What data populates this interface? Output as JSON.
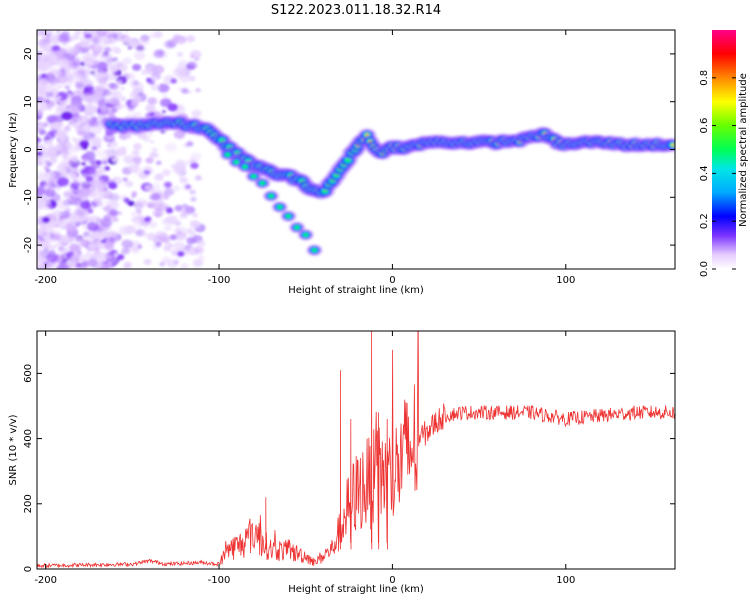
{
  "page_title": "S122.2023.011.18.32.R14",
  "chart_data": [
    {
      "type": "heatmap",
      "xlabel": "Height of straight line (km)",
      "ylabel": "Frequency (Hz)",
      "xlim": [
        -205,
        163
      ],
      "ylim": [
        -25,
        25
      ],
      "x_ticks": [
        -200,
        -100,
        0,
        100
      ],
      "y_ticks": [
        -20,
        -10,
        0,
        10,
        20
      ],
      "colorbar": {
        "label": "Normalized spectral amplitude",
        "range": [
          0,
          1
        ],
        "ticks": [
          0.0,
          0.2,
          0.4,
          0.6,
          0.8
        ],
        "tick_labels": [
          "0.0",
          "0.2",
          "0.4",
          "0.6",
          "0.8"
        ],
        "colormap": [
          "#ffffff",
          "#e6ccff",
          "#a066ff",
          "#5a00e0",
          "#0000ff",
          "#00aaff",
          "#00e6e6",
          "#00ff55",
          "#66ff00",
          "#ffff00",
          "#ff8800",
          "#ff0000",
          "#ff0088"
        ]
      },
      "ridge": {
        "description_x": [
          -162,
          -150,
          -135,
          -125,
          -117,
          -105,
          -98,
          -90,
          -82,
          -75,
          -68,
          -60,
          -52,
          -45,
          -40,
          -35,
          -30,
          -25,
          -20,
          -15,
          -10,
          -5,
          0,
          10,
          20,
          40,
          60,
          75,
          82,
          88,
          95,
          100,
          110,
          120,
          135,
          150,
          163
        ],
        "description_y": [
          5,
          5,
          5.5,
          5.5,
          5,
          4,
          1.5,
          -1,
          -3,
          -4,
          -5,
          -5.5,
          -7,
          -8.5,
          -9,
          -7,
          -4,
          -2,
          1,
          3,
          0,
          -0.5,
          0.5,
          0.5,
          1.5,
          1.5,
          1.5,
          2,
          3,
          3,
          1.5,
          1,
          1.5,
          1.5,
          1,
          1,
          1
        ],
        "branch_x": [
          -95,
          -85,
          -75,
          -68,
          -60,
          -55,
          -50,
          -45,
          -42
        ],
        "branch_y": [
          -1,
          -4,
          -7,
          -11,
          -14,
          -16,
          -18,
          -21,
          -23
        ]
      }
    },
    {
      "type": "line",
      "xlabel": "Height of straight line (km)",
      "ylabel": "SNR (10 * v/v)",
      "xlim": [
        -205,
        163
      ],
      "ylim": [
        0,
        730
      ],
      "x_ticks": [
        -200,
        -100,
        0,
        100
      ],
      "y_ticks": [
        0,
        200,
        400,
        600
      ],
      "series_color": "#ee3333",
      "envelope_x": [
        -205,
        -150,
        -140,
        -130,
        -110,
        -100,
        -95,
        -85,
        -80,
        -75,
        -70,
        -60,
        -50,
        -45,
        -40,
        -35,
        -30,
        -25,
        -20,
        -15,
        -10,
        -5,
        0,
        5,
        10,
        15,
        20,
        25,
        30,
        40,
        60,
        80,
        100,
        120,
        140,
        163
      ],
      "envelope_y": [
        10,
        15,
        25,
        15,
        20,
        15,
        60,
        80,
        120,
        80,
        60,
        55,
        40,
        20,
        40,
        60,
        120,
        200,
        240,
        260,
        280,
        300,
        280,
        330,
        370,
        400,
        420,
        450,
        470,
        480,
        480,
        480,
        460,
        470,
        480,
        480
      ],
      "spikes": [
        {
          "x": -73,
          "y": 220
        },
        {
          "x": -30,
          "y": 610
        },
        {
          "x": -24,
          "y": 460
        },
        {
          "x": -12,
          "y": 730
        },
        {
          "x": -8,
          "y": 480
        },
        {
          "x": -3,
          "y": 460
        }
      ]
    }
  ]
}
